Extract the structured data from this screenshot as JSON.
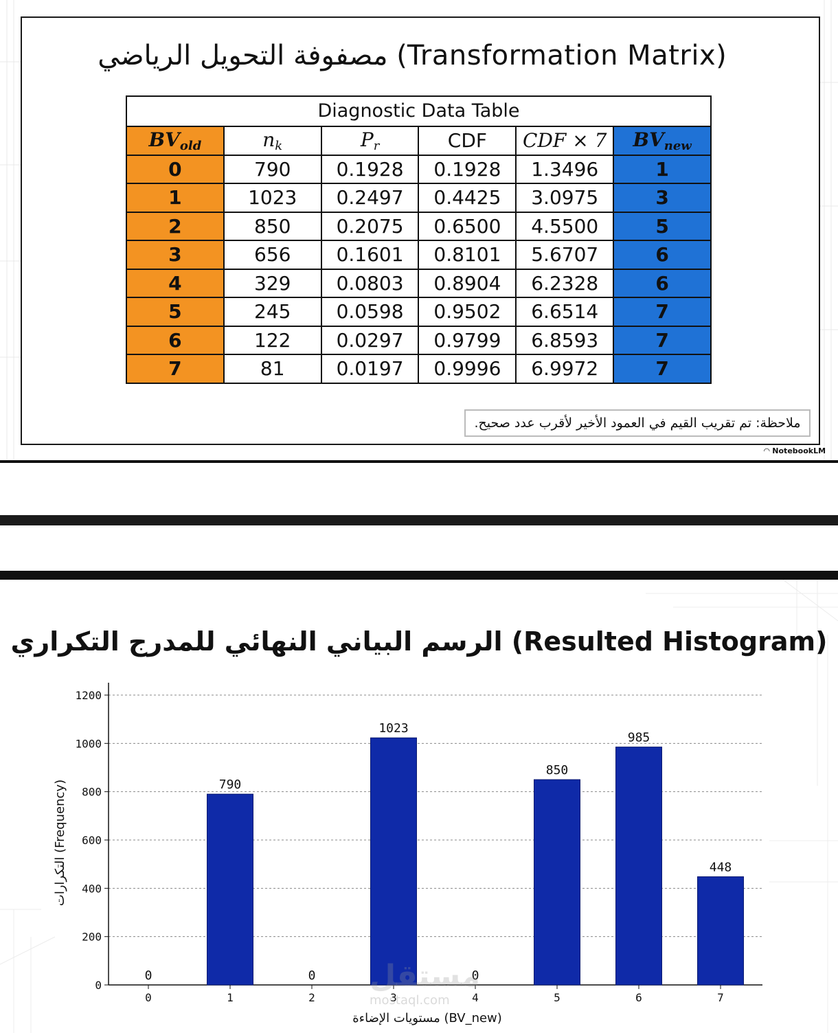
{
  "slide1": {
    "title": "مصفوفة التحويل الرياضي (Transformation Matrix)",
    "table_caption": "Diagnostic Data Table",
    "headers": [
      {
        "main": "BV",
        "sub": "old"
      },
      {
        "main": "n",
        "sub": "k"
      },
      {
        "main": "P",
        "sub": "r"
      },
      {
        "main": "CDF",
        "sub": ""
      },
      {
        "main": "CDF × 7",
        "sub": ""
      },
      {
        "main": "BV",
        "sub": "new"
      }
    ],
    "rows": [
      [
        "0",
        "790",
        "0.1928",
        "0.1928",
        "1.3496",
        "1"
      ],
      [
        "1",
        "1023",
        "0.2497",
        "0.4425",
        "3.0975",
        "3"
      ],
      [
        "2",
        "850",
        "0.2075",
        "0.6500",
        "4.5500",
        "5"
      ],
      [
        "3",
        "656",
        "0.1601",
        "0.8101",
        "5.6707",
        "6"
      ],
      [
        "4",
        "329",
        "0.0803",
        "0.8904",
        "6.2328",
        "6"
      ],
      [
        "5",
        "245",
        "0.0598",
        "0.9502",
        "6.6514",
        "7"
      ],
      [
        "6",
        "122",
        "0.0297",
        "0.9799",
        "6.8593",
        "7"
      ],
      [
        "7",
        "81",
        "0.0197",
        "0.9996",
        "6.9972",
        "7"
      ]
    ],
    "note": "ملاحظة: تم تقريب القيم في العمود الأخير لأقرب عدد صحيح.",
    "brand": "NotebookLM",
    "colors": {
      "old_column": "#f39322",
      "new_column": "#1f72d6"
    }
  },
  "slide2": {
    "title": "الرسم البياني النهائي للمدرج التكراري (Resulted Histogram)",
    "watermark": "مستقل",
    "watermark_url": "mostaql.com"
  },
  "chart_data": {
    "type": "bar",
    "categories": [
      "0",
      "1",
      "2",
      "3",
      "4",
      "5",
      "6",
      "7"
    ],
    "values": [
      0,
      790,
      0,
      1023,
      0,
      850,
      985,
      448
    ],
    "data_labels": [
      "0",
      "790",
      "0",
      "1023",
      "0",
      "850",
      "985",
      "448"
    ],
    "xlabel": "مستويات الإضاءة (BV_new)",
    "ylabel": "التكرارات (Frequency)",
    "ylim": [
      0,
      1200
    ],
    "yticks": [
      0,
      200,
      400,
      600,
      800,
      1000,
      1200
    ],
    "grid": true,
    "bar_color": "#0f2aa8"
  }
}
